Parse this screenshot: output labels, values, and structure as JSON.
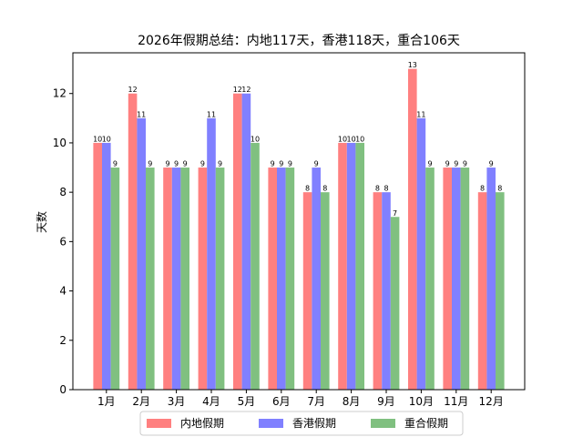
{
  "chart_data": {
    "type": "bar",
    "title": "2026年假期总结：内地117天，香港118天，重合106天",
    "xlabel": "",
    "ylabel": "天数",
    "ylim": [
      0,
      13.65
    ],
    "yticks": [
      0,
      2,
      4,
      6,
      8,
      10,
      12
    ],
    "grid": false,
    "legend_position": "bottom-center",
    "categories": [
      "1月",
      "2月",
      "3月",
      "4月",
      "5月",
      "6月",
      "7月",
      "8月",
      "9月",
      "10月",
      "11月",
      "12月"
    ],
    "series": [
      {
        "name": "内地假期",
        "color": "#ff8080",
        "values": [
          10,
          12,
          9,
          9,
          12,
          9,
          8,
          10,
          8,
          13,
          9,
          8
        ]
      },
      {
        "name": "香港假期",
        "color": "#8080ff",
        "values": [
          10,
          11,
          9,
          11,
          12,
          9,
          9,
          10,
          8,
          11,
          9,
          9
        ]
      },
      {
        "name": "重合假期",
        "color": "#80c080",
        "values": [
          9,
          9,
          9,
          9,
          10,
          9,
          8,
          10,
          7,
          9,
          9,
          8
        ]
      }
    ]
  }
}
